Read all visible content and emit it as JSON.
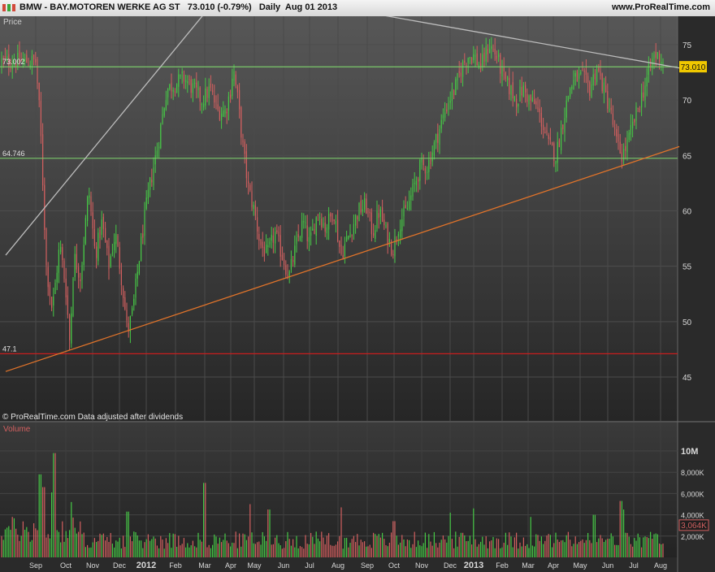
{
  "titlebar": {
    "symbol": "BMW",
    "name": "BAY.MOTOREN WERKE AG ST",
    "quote": "73.010 (-0.79%)",
    "period": "Daily",
    "date": "Aug 01 2013",
    "site": "www.ProRealTime.com"
  },
  "price_panel": {
    "label": "Price",
    "footer": "© ProRealTime.com  Data adjusted after dividends",
    "last_price": "73.010"
  },
  "volume_panel": {
    "label": "Volume",
    "last_volume": "3,064K"
  },
  "colors": {
    "background": "#2b2b2b",
    "up": "#46c846",
    "down": "#d25f5f",
    "support_line": "#7ac86a",
    "trend_line": "#e0732a",
    "resistance_line": "#bdbdbd",
    "low_line": "#c81e1e",
    "last_price_badge": "#f0c800"
  },
  "chart_data": [
    {
      "type": "candlestick",
      "title": "BMW - BAY.MOTOREN WERKE AG ST  73.010 (-0.79%)  Daily  Aug 01 2013",
      "ylabel": "Price",
      "x_ticks": [
        "Sep",
        "Oct",
        "Nov",
        "Dec",
        "2012",
        "Feb",
        "Mar",
        "Apr",
        "May",
        "Jun",
        "Jul",
        "Aug",
        "Sep",
        "Oct",
        "Nov",
        "Dec",
        "2013",
        "Feb",
        "Mar",
        "Apr",
        "May",
        "Jun",
        "Jul",
        "Aug"
      ],
      "y_ticks": [
        45,
        50,
        55,
        60,
        65,
        70,
        75
      ],
      "ylim": [
        42,
        77.5
      ],
      "price_path": [
        {
          "x": 0,
          "y": 73.5
        },
        {
          "x": 0.15,
          "y": 68
        },
        {
          "x": 0.35,
          "y": 55
        },
        {
          "x": 0.55,
          "y": 51
        },
        {
          "x": 0.8,
          "y": 57
        },
        {
          "x": 1.0,
          "y": 53
        },
        {
          "x": 1.15,
          "y": 48
        },
        {
          "x": 1.3,
          "y": 56
        },
        {
          "x": 1.55,
          "y": 54
        },
        {
          "x": 1.85,
          "y": 62
        },
        {
          "x": 2.1,
          "y": 56
        },
        {
          "x": 2.35,
          "y": 59
        },
        {
          "x": 2.6,
          "y": 55
        },
        {
          "x": 2.85,
          "y": 58
        },
        {
          "x": 3.1,
          "y": 53.5
        },
        {
          "x": 3.3,
          "y": 49
        },
        {
          "x": 3.5,
          "y": 51
        },
        {
          "x": 3.8,
          "y": 57
        },
        {
          "x": 4.1,
          "y": 62
        },
        {
          "x": 4.4,
          "y": 66
        },
        {
          "x": 4.7,
          "y": 71
        },
        {
          "x": 5.0,
          "y": 71.5
        },
        {
          "x": 5.3,
          "y": 72
        },
        {
          "x": 5.6,
          "y": 71
        },
        {
          "x": 5.9,
          "y": 70
        },
        {
          "x": 6.2,
          "y": 71
        },
        {
          "x": 6.5,
          "y": 69
        },
        {
          "x": 6.8,
          "y": 69
        },
        {
          "x": 7.0,
          "y": 71
        },
        {
          "x": 7.1,
          "y": 73
        },
        {
          "x": 7.3,
          "y": 70
        },
        {
          "x": 7.5,
          "y": 66
        },
        {
          "x": 7.75,
          "y": 62
        },
        {
          "x": 8.0,
          "y": 60
        },
        {
          "x": 8.2,
          "y": 57
        },
        {
          "x": 8.45,
          "y": 56
        },
        {
          "x": 8.7,
          "y": 58
        },
        {
          "x": 8.95,
          "y": 56
        },
        {
          "x": 9.2,
          "y": 54
        },
        {
          "x": 9.5,
          "y": 57
        },
        {
          "x": 9.75,
          "y": 59
        },
        {
          "x": 10.0,
          "y": 57
        },
        {
          "x": 10.3,
          "y": 60
        },
        {
          "x": 10.55,
          "y": 58.5
        },
        {
          "x": 10.85,
          "y": 60
        },
        {
          "x": 11.1,
          "y": 56
        },
        {
          "x": 11.4,
          "y": 58
        },
        {
          "x": 11.7,
          "y": 60
        },
        {
          "x": 11.95,
          "y": 60.5
        },
        {
          "x": 12.2,
          "y": 58
        },
        {
          "x": 12.45,
          "y": 60
        },
        {
          "x": 12.7,
          "y": 58
        },
        {
          "x": 12.95,
          "y": 56.5
        },
        {
          "x": 13.2,
          "y": 59
        },
        {
          "x": 13.45,
          "y": 60
        },
        {
          "x": 13.7,
          "y": 62
        },
        {
          "x": 13.95,
          "y": 64
        },
        {
          "x": 14.2,
          "y": 64
        },
        {
          "x": 14.45,
          "y": 66
        },
        {
          "x": 14.7,
          "y": 68
        },
        {
          "x": 14.95,
          "y": 70
        },
        {
          "x": 15.2,
          "y": 71
        },
        {
          "x": 15.5,
          "y": 73
        },
        {
          "x": 15.75,
          "y": 74
        },
        {
          "x": 16.0,
          "y": 74
        },
        {
          "x": 16.25,
          "y": 73
        },
        {
          "x": 16.55,
          "y": 75
        },
        {
          "x": 16.8,
          "y": 74
        },
        {
          "x": 17.05,
          "y": 72
        },
        {
          "x": 17.3,
          "y": 71
        },
        {
          "x": 17.55,
          "y": 70
        },
        {
          "x": 17.8,
          "y": 71
        },
        {
          "x": 18.05,
          "y": 70
        },
        {
          "x": 18.3,
          "y": 69.5
        },
        {
          "x": 18.55,
          "y": 68
        },
        {
          "x": 18.8,
          "y": 66
        },
        {
          "x": 19.1,
          "y": 65
        },
        {
          "x": 19.35,
          "y": 68
        },
        {
          "x": 19.6,
          "y": 71
        },
        {
          "x": 19.85,
          "y": 72
        },
        {
          "x": 20.1,
          "y": 72
        },
        {
          "x": 20.35,
          "y": 71
        },
        {
          "x": 20.6,
          "y": 73
        },
        {
          "x": 20.85,
          "y": 71
        },
        {
          "x": 21.1,
          "y": 69
        },
        {
          "x": 21.35,
          "y": 66
        },
        {
          "x": 21.55,
          "y": 65
        },
        {
          "x": 21.75,
          "y": 66
        },
        {
          "x": 22.0,
          "y": 68
        },
        {
          "x": 22.25,
          "y": 70
        },
        {
          "x": 22.5,
          "y": 72
        },
        {
          "x": 22.75,
          "y": 74
        },
        {
          "x": 22.95,
          "y": 74
        },
        {
          "x": 23.2,
          "y": 73.01
        }
      ],
      "lines": [
        {
          "name": "",
          "kind": "horizontal",
          "y": 73.002,
          "color": "#7ac86a"
        },
        {
          "name": "",
          "kind": "horizontal",
          "y": 64.746,
          "color": "#7ac86a"
        },
        {
          "name": "",
          "kind": "horizontal",
          "y": 47.1,
          "color": "#c81e1e"
        },
        {
          "name": "",
          "kind": "trend",
          "points": [
            {
              "x": -1.0,
              "y": 45.5
            },
            {
              "x": 23.7,
              "y": 65.8
            }
          ],
          "color": "#e0732a"
        },
        {
          "name": "",
          "kind": "trend",
          "points": [
            {
              "x": -1.0,
              "y": 56
            },
            {
              "x": 7.5,
              "y": 82
            }
          ],
          "color": "#bdbdbd"
        },
        {
          "name": "",
          "kind": "trend",
          "points": [
            {
              "x": 11.8,
              "y": 78
            },
            {
              "x": 23.7,
              "y": 72.9
            }
          ],
          "color": "#bdbdbd"
        }
      ],
      "level_labels": [
        "73.002",
        "64.746",
        "47.1"
      ],
      "last_value": 73.01,
      "grid": true
    },
    {
      "type": "bar",
      "title": "",
      "ylabel": "Volume",
      "y_ticks": [
        "2,000K",
        "4,000K",
        "6,000K",
        "8,000K",
        "10M"
      ],
      "y_tick_values": [
        2000,
        4000,
        6000,
        8000,
        10000
      ],
      "ylim": [
        0,
        10500
      ],
      "typical_volume": 1800,
      "spikes": [
        {
          "x": 0.15,
          "value": 7800
        },
        {
          "x": 0.25,
          "value": 6600
        },
        {
          "x": 0.55,
          "value": 6100
        },
        {
          "x": 0.6,
          "value": 9800
        },
        {
          "x": 1.2,
          "value": 5200
        },
        {
          "x": 3.3,
          "value": 4300
        },
        {
          "x": 6.0,
          "value": 7000
        },
        {
          "x": 7.8,
          "value": 5000
        },
        {
          "x": 8.5,
          "value": 4500
        },
        {
          "x": 11.1,
          "value": 4700
        },
        {
          "x": 13.0,
          "value": 3400
        },
        {
          "x": 15.0,
          "value": 4200
        },
        {
          "x": 16.0,
          "value": 4600
        },
        {
          "x": 18.1,
          "value": 3800
        },
        {
          "x": 20.5,
          "value": 4000
        },
        {
          "x": 21.5,
          "value": 5300
        },
        {
          "x": 21.6,
          "value": 4500
        },
        {
          "x": 23.2,
          "value": 3064
        }
      ],
      "last_value": 3064,
      "grid": true
    }
  ]
}
